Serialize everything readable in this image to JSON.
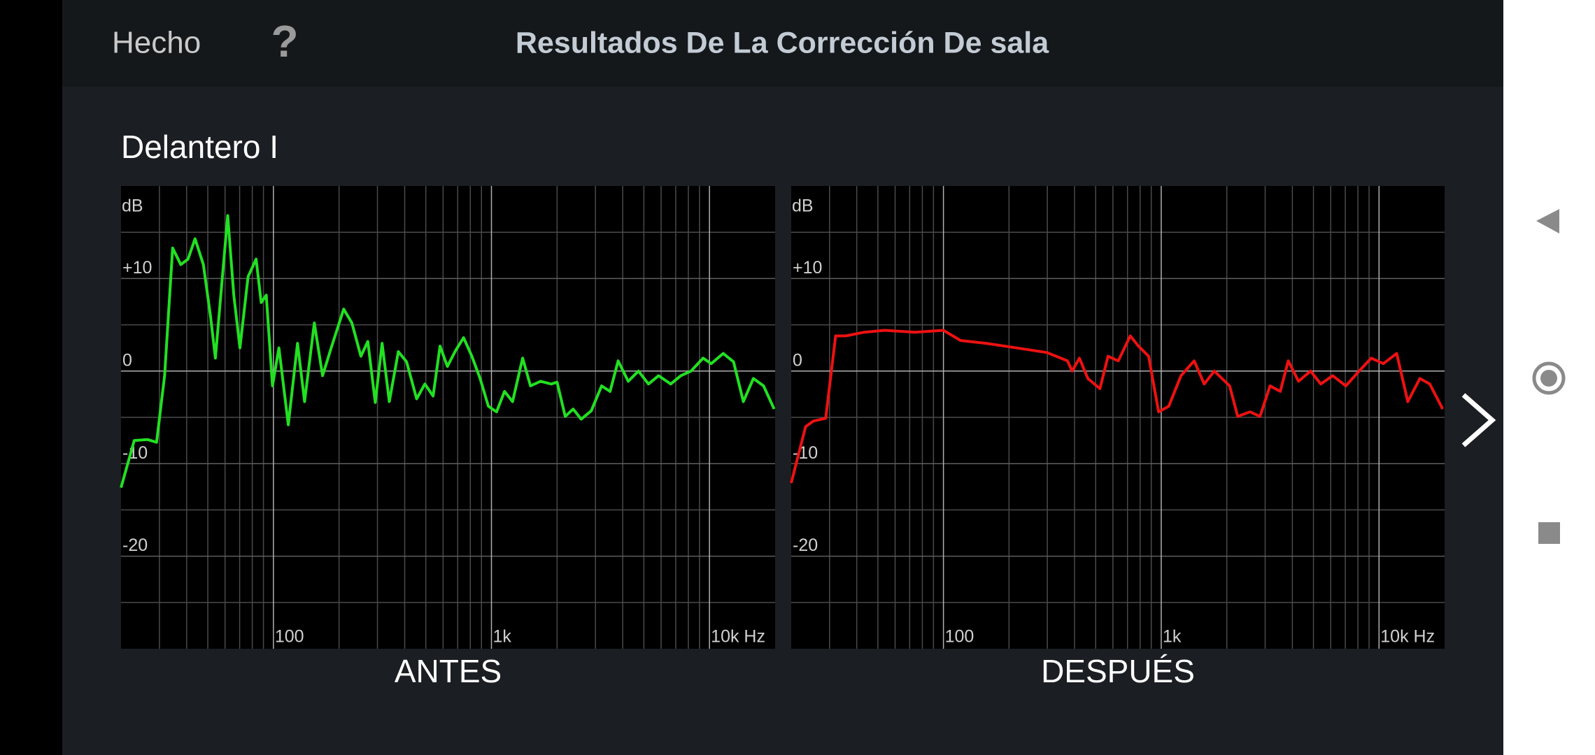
{
  "header": {
    "done": "Hecho",
    "help": "?",
    "title": "Resultados De La Corrección De sala"
  },
  "section_title": "Delantero I",
  "chart_data": [
    {
      "type": "line",
      "title": "ANTES",
      "y_label": "dB",
      "color": "#22e022",
      "log_x": true,
      "xlim": [
        20,
        20000
      ],
      "ylim": [
        -30,
        20
      ],
      "xticks": [
        100,
        {
          "value": 1000,
          "label": "1k"
        },
        {
          "value": 10000,
          "label": "10k Hz"
        }
      ],
      "xminor": [
        30,
        40,
        50,
        60,
        70,
        80,
        90,
        200,
        300,
        400,
        500,
        600,
        700,
        800,
        900,
        2000,
        3000,
        4000,
        5000,
        6000,
        7000,
        8000,
        9000
      ],
      "yticks": [
        {
          "value": 10,
          "label": "+10"
        },
        0,
        -10,
        -20
      ],
      "yminor": [
        15,
        5,
        -5,
        -15,
        -25
      ],
      "x": [
        20,
        23,
        26.5,
        29.1,
        31.7,
        34.5,
        37.6,
        40.6,
        43.7,
        47.7,
        51.4,
        54.2,
        57.9,
        61.7,
        65.8,
        70.2,
        76.5,
        83.3,
        87.9,
        92.7,
        99,
        106,
        117,
        129,
        139,
        154,
        168,
        184,
        210,
        229,
        252,
        271,
        293,
        315,
        340,
        374,
        408,
        454,
        495,
        540,
        581,
        628,
        684,
        745,
        813,
        887,
        968,
        1055,
        1148,
        1250,
        1390,
        1510,
        1680,
        1880,
        2000,
        2180,
        2370,
        2580,
        2870,
        3200,
        3500,
        3810,
        4240,
        4720,
        5250,
        5840,
        6640,
        7390,
        8230,
        9350,
        10180,
        11560,
        12900,
        14300,
        15900,
        17700,
        19800
      ],
      "values": [
        -12.6,
        -7.5,
        -7.4,
        -7.7,
        -0.5,
        13.3,
        11.5,
        12.1,
        14.3,
        11.5,
        6.0,
        1.4,
        9.3,
        16.8,
        8.2,
        2.5,
        10.2,
        12.1,
        7.4,
        8.2,
        -1.6,
        2.5,
        -5.8,
        3.0,
        -3.3,
        5.2,
        -0.5,
        2.5,
        6.7,
        5.2,
        1.6,
        3.2,
        -3.4,
        3.0,
        -3.3,
        2.1,
        1.0,
        -3.0,
        -1.4,
        -2.7,
        2.7,
        0.5,
        2.2,
        3.6,
        1.6,
        -0.8,
        -3.8,
        -4.4,
        -2.2,
        -3.3,
        1.4,
        -1.6,
        -1.1,
        -1.4,
        -1.2,
        -4.9,
        -4.1,
        -5.2,
        -4.3,
        -1.6,
        -2.2,
        1.1,
        -1.1,
        0.0,
        -1.4,
        -0.5,
        -1.4,
        -0.5,
        0.0,
        1.4,
        0.8,
        1.9,
        1.0,
        -3.3,
        -0.8,
        -1.6,
        -4.1
      ]
    },
    {
      "type": "line",
      "title": "DESPUÉS",
      "y_label": "dB",
      "color": "#ee1111",
      "log_x": true,
      "xlim": [
        20,
        20000
      ],
      "ylim": [
        -30,
        20
      ],
      "xticks": [
        100,
        {
          "value": 1000,
          "label": "1k"
        },
        {
          "value": 10000,
          "label": "10k Hz"
        }
      ],
      "xminor": [
        30,
        40,
        50,
        60,
        70,
        80,
        90,
        200,
        300,
        400,
        500,
        600,
        700,
        800,
        900,
        2000,
        3000,
        4000,
        5000,
        6000,
        7000,
        8000,
        9000
      ],
      "yticks": [
        {
          "value": 10,
          "label": "+10"
        },
        0,
        -10,
        -20
      ],
      "yminor": [
        15,
        5,
        -5,
        -15,
        -25
      ],
      "x": [
        20,
        23.3,
        25.3,
        28.8,
        32,
        35.6,
        43.3,
        53.7,
        74,
        100,
        120,
        157,
        217,
        299,
        371,
        390,
        421,
        460,
        523,
        570,
        635,
        721,
        786,
        875,
        973,
        1083,
        1232,
        1416,
        1575,
        1752,
        2060,
        2245,
        2555,
        2840,
        3160,
        3520,
        3830,
        4270,
        4850,
        5400,
        6130,
        7040,
        8100,
        9210,
        10470,
        12050,
        13550,
        15400,
        17100,
        19600
      ],
      "values": [
        -12.1,
        -6.0,
        -5.4,
        -5.1,
        3.8,
        3.8,
        4.2,
        4.4,
        4.2,
        4.4,
        3.3,
        3.0,
        2.5,
        2.0,
        1.1,
        0.0,
        1.4,
        -0.8,
        -1.9,
        1.6,
        1.1,
        3.8,
        2.7,
        1.6,
        -4.4,
        -3.8,
        -0.5,
        1.1,
        -1.4,
        0.0,
        -1.6,
        -4.9,
        -4.4,
        -4.9,
        -1.6,
        -2.2,
        1.1,
        -1.1,
        0.0,
        -1.4,
        -0.5,
        -1.6,
        0.0,
        1.4,
        0.8,
        1.9,
        -3.3,
        -0.8,
        -1.4,
        -4.1
      ]
    }
  ]
}
